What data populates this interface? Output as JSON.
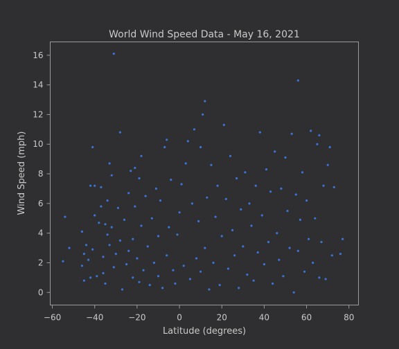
{
  "chart_data": {
    "type": "scatter",
    "title": "World Wind Speed Data - May 16, 2021",
    "xlabel": "Latitude (degrees)",
    "ylabel": "Wind Speed (mph)",
    "xlim": [
      -61,
      84.5
    ],
    "ylim": [
      -0.85,
      16.9
    ],
    "grid": false,
    "point_color": "#3b74d4",
    "xticks": [
      -60,
      -40,
      -20,
      0,
      20,
      40,
      60,
      80
    ],
    "yticks": [
      0,
      2,
      4,
      6,
      8,
      10,
      12,
      14,
      16
    ],
    "xtick_labels": [
      "−60",
      "−40",
      "−20",
      "0",
      "20",
      "40",
      "60",
      "80"
    ],
    "ytick_labels": [
      "0",
      "2",
      "4",
      "6",
      "8",
      "10",
      "12",
      "14",
      "16"
    ],
    "points": [
      [
        -55,
        2.1
      ],
      [
        -54,
        5.1
      ],
      [
        -52,
        3.0
      ],
      [
        -46,
        1.8
      ],
      [
        -46,
        4.1
      ],
      [
        -45,
        0.8
      ],
      [
        -45,
        2.6
      ],
      [
        -44,
        3.2
      ],
      [
        -43,
        2.2
      ],
      [
        -42,
        7.2
      ],
      [
        -42,
        1.0
      ],
      [
        -41,
        9.8
      ],
      [
        -41,
        2.9
      ],
      [
        -40,
        5.2
      ],
      [
        -40,
        7.2
      ],
      [
        -39,
        1.1
      ],
      [
        -38,
        4.7
      ],
      [
        -37,
        5.8
      ],
      [
        -37,
        7.1
      ],
      [
        -36,
        1.3
      ],
      [
        -36,
        2.4
      ],
      [
        -35,
        4.6
      ],
      [
        -35,
        0.6
      ],
      [
        -34,
        3.9
      ],
      [
        -34,
        6.2
      ],
      [
        -33,
        3.2
      ],
      [
        -33,
        8.7
      ],
      [
        -32,
        4.4
      ],
      [
        -32,
        7.9
      ],
      [
        -31,
        16.1
      ],
      [
        -31,
        1.7
      ],
      [
        -30,
        2.6
      ],
      [
        -29,
        5.7
      ],
      [
        -28,
        10.8
      ],
      [
        -28,
        3.5
      ],
      [
        -27,
        0.2
      ],
      [
        -26,
        4.9
      ],
      [
        -25,
        1.9
      ],
      [
        -24,
        6.7
      ],
      [
        -24,
        2.8
      ],
      [
        -23,
        8.2
      ],
      [
        -22,
        3.6
      ],
      [
        -22,
        1.0
      ],
      [
        -21,
        5.8
      ],
      [
        -21,
        8.4
      ],
      [
        -20,
        2.3
      ],
      [
        -19,
        7.7
      ],
      [
        -19,
        0.7
      ],
      [
        -18,
        4.5
      ],
      [
        -18,
        9.2
      ],
      [
        -17,
        1.5
      ],
      [
        -16,
        6.5
      ],
      [
        -15,
        3.1
      ],
      [
        -14,
        0.5
      ],
      [
        -13,
        5.0
      ],
      [
        -12,
        2.0
      ],
      [
        -11,
        7.0
      ],
      [
        -10,
        1.1
      ],
      [
        -10,
        3.8
      ],
      [
        -9,
        6.2
      ],
      [
        -8,
        0.3
      ],
      [
        -7,
        9.8
      ],
      [
        -6,
        10.3
      ],
      [
        -6,
        2.5
      ],
      [
        -5,
        4.4
      ],
      [
        -4,
        7.6
      ],
      [
        -3,
        1.5
      ],
      [
        -2,
        0.6
      ],
      [
        -1,
        3.9
      ],
      [
        0,
        5.4
      ],
      [
        1,
        7.3
      ],
      [
        2,
        1.8
      ],
      [
        3,
        8.7
      ],
      [
        4,
        10.2
      ],
      [
        5,
        0.9
      ],
      [
        6,
        6.0
      ],
      [
        7,
        11.0
      ],
      [
        8,
        2.3
      ],
      [
        9,
        4.8
      ],
      [
        10,
        9.8
      ],
      [
        10,
        1.4
      ],
      [
        11,
        12.0
      ],
      [
        12,
        12.9
      ],
      [
        12,
        3.0
      ],
      [
        13,
        6.4
      ],
      [
        14,
        0.2
      ],
      [
        15,
        8.6
      ],
      [
        16,
        2.0
      ],
      [
        17,
        5.1
      ],
      [
        18,
        7.2
      ],
      [
        19,
        0.5
      ],
      [
        20,
        3.8
      ],
      [
        21,
        11.3
      ],
      [
        22,
        6.3
      ],
      [
        23,
        1.6
      ],
      [
        24,
        9.2
      ],
      [
        25,
        4.2
      ],
      [
        26,
        2.5
      ],
      [
        27,
        7.7
      ],
      [
        28,
        0.3
      ],
      [
        29,
        5.6
      ],
      [
        30,
        3.1
      ],
      [
        31,
        8.1
      ],
      [
        32,
        1.2
      ],
      [
        33,
        6.0
      ],
      [
        34,
        4.5
      ],
      [
        35,
        0.8
      ],
      [
        36,
        7.2
      ],
      [
        37,
        2.7
      ],
      [
        38,
        10.8
      ],
      [
        39,
        5.2
      ],
      [
        40,
        1.9
      ],
      [
        41,
        8.3
      ],
      [
        42,
        3.4
      ],
      [
        43,
        6.8
      ],
      [
        44,
        0.6
      ],
      [
        45,
        9.5
      ],
      [
        46,
        4.0
      ],
      [
        47,
        2.2
      ],
      [
        48,
        7.0
      ],
      [
        49,
        1.1
      ],
      [
        50,
        9.1
      ],
      [
        51,
        5.5
      ],
      [
        52,
        3.0
      ],
      [
        53,
        10.7
      ],
      [
        54,
        0.0
      ],
      [
        55,
        6.6
      ],
      [
        56,
        14.3
      ],
      [
        56,
        2.8
      ],
      [
        57,
        4.9
      ],
      [
        58,
        8.1
      ],
      [
        59,
        1.4
      ],
      [
        60,
        6.2
      ],
      [
        61,
        3.6
      ],
      [
        62,
        10.9
      ],
      [
        63,
        2.0
      ],
      [
        64,
        5.0
      ],
      [
        65,
        10.0
      ],
      [
        66,
        1.0
      ],
      [
        66,
        10.6
      ],
      [
        67,
        3.4
      ],
      [
        68,
        7.2
      ],
      [
        69,
        0.9
      ],
      [
        70,
        8.6
      ],
      [
        71,
        9.8
      ],
      [
        72,
        2.5
      ],
      [
        73,
        7.1
      ],
      [
        76,
        2.6
      ],
      [
        77,
        3.6
      ]
    ]
  }
}
